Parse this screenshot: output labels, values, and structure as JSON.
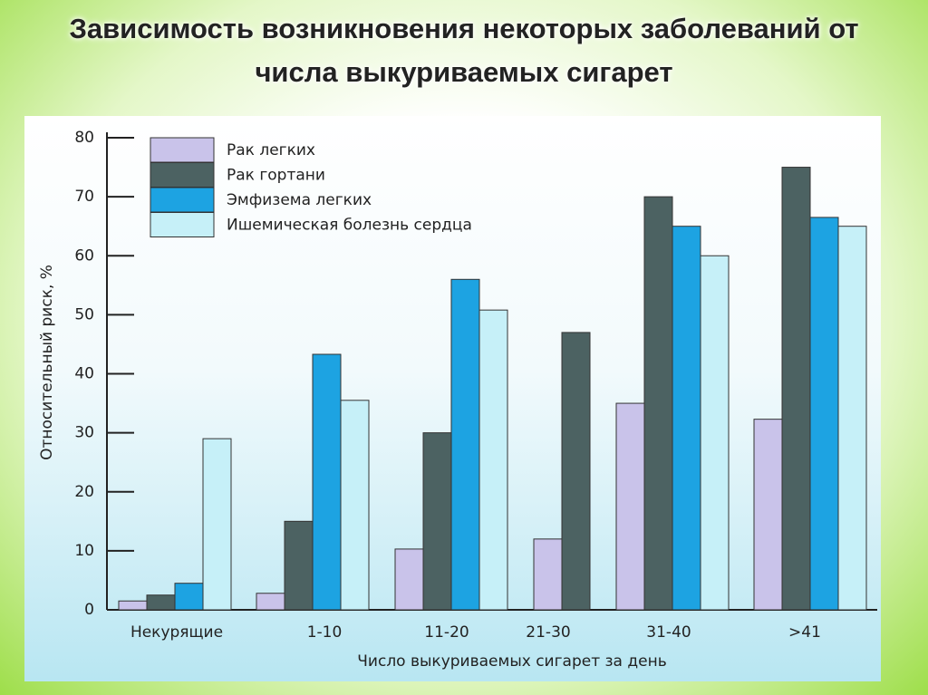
{
  "chart_data": {
    "type": "bar",
    "title": "Зависимость возникновения некоторых заболеваний от числа выкуриваемых сигарет",
    "x_label": "Число выкуриваемых сигарет за день",
    "y_label": "Относительный риск, %",
    "categories": [
      "Некурящие",
      "1-10",
      "11-20",
      "21-30",
      "31-40",
      ">41"
    ],
    "series": [
      {
        "name": "Рак легких",
        "color": "#c9c3ea",
        "values": [
          1.5,
          2.8,
          10.3,
          12,
          35,
          32.3
        ]
      },
      {
        "name": "Рак гортани",
        "color": "#4c6262",
        "values": [
          2.5,
          15,
          30,
          47,
          70,
          75
        ]
      },
      {
        "name": "Эмфизема легких",
        "color": "#1da3e2",
        "values": [
          4.5,
          43.3,
          56,
          null,
          65,
          66.5
        ]
      },
      {
        "name": "Ишемическая болезнь сердца",
        "color": "#c6f0f8",
        "values": [
          29,
          35.5,
          50.8,
          null,
          60,
          65
        ]
      }
    ],
    "ylim": [
      0,
      80
    ],
    "yticks": [
      0,
      10,
      20,
      30,
      40,
      50,
      60,
      70,
      80
    ],
    "legend": "upper left",
    "grid": false
  }
}
